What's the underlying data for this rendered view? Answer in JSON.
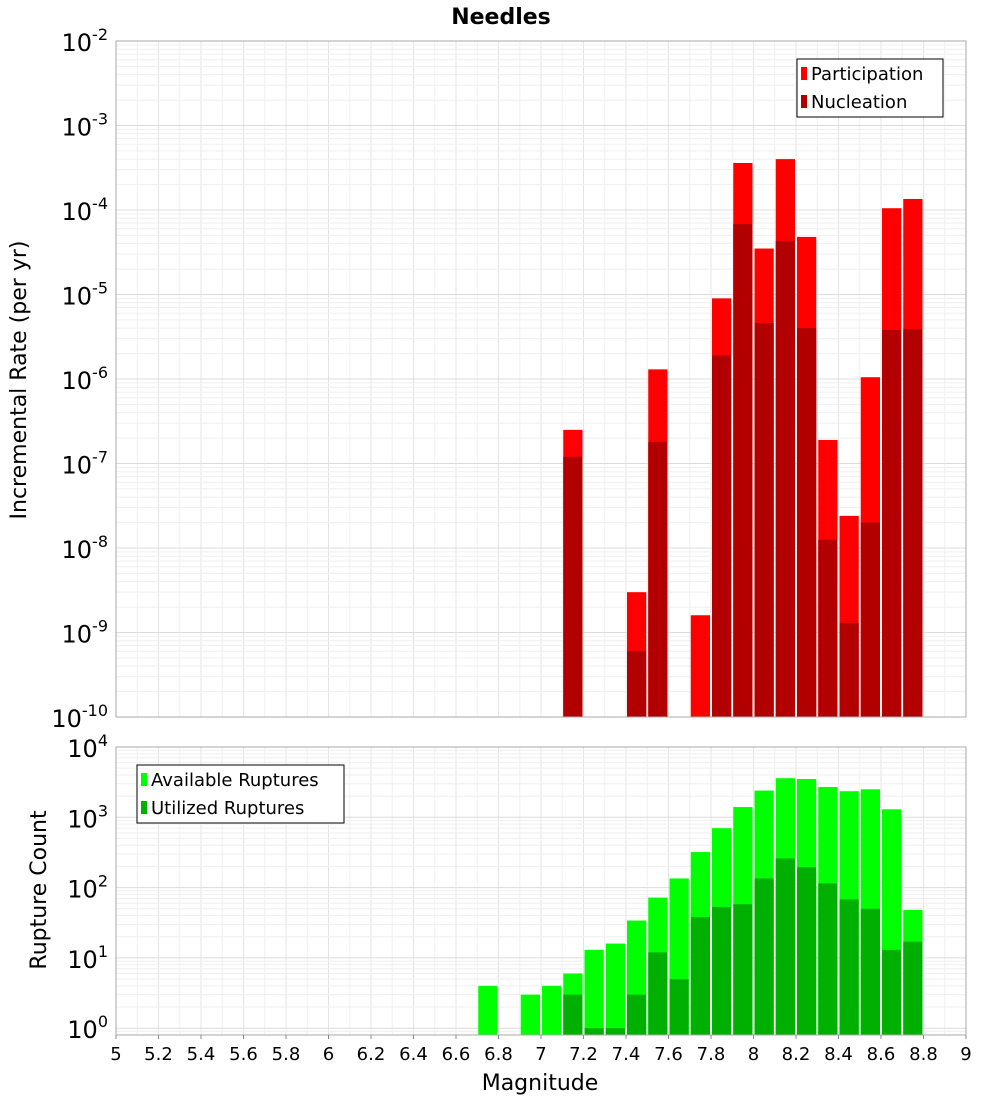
{
  "chart_data": [
    {
      "type": "bar",
      "title": "Needles",
      "xlabel": "",
      "ylabel": "Incremental Rate (per yr)",
      "yscale": "log",
      "ylim": [
        1e-10,
        0.01
      ],
      "xlim": [
        5,
        9
      ],
      "y_tick_exponents": [
        "-10",
        "-9",
        "-8",
        "-7",
        "-6",
        "-5",
        "-4",
        "-3",
        "-2"
      ],
      "grid": true,
      "legend_position": "top-right",
      "series": [
        {
          "name": "Participation",
          "color": "#ff0000",
          "x": [
            7.15,
            7.45,
            7.55,
            7.75,
            7.85,
            7.95,
            8.05,
            8.15,
            8.25,
            8.35,
            8.45,
            8.55,
            8.65,
            8.75
          ],
          "values": [
            2.5e-07,
            3e-09,
            1.3e-06,
            1.6e-09,
            9e-06,
            0.00036,
            3.5e-05,
            0.0004,
            4.8e-05,
            1.9e-07,
            2.4e-08,
            1.05e-06,
            0.000105,
            0.000135
          ]
        },
        {
          "name": "Nucleation",
          "color": "#b20000",
          "x": [
            7.15,
            7.45,
            7.55,
            7.85,
            7.95,
            8.05,
            8.15,
            8.25,
            8.35,
            8.45,
            8.55,
            8.65,
            8.75
          ],
          "values": [
            1.2e-07,
            6e-10,
            1.8e-07,
            1.9e-06,
            6.8e-05,
            4.6e-06,
            4.3e-05,
            4e-06,
            1.25e-08,
            1.3e-09,
            2e-08,
            3.8e-06,
            3.9e-06
          ]
        }
      ]
    },
    {
      "type": "bar",
      "title": "",
      "xlabel": "Magnitude",
      "ylabel": "Rupture Count",
      "yscale": "log",
      "ylim": [
        0.8,
        10000
      ],
      "xlim": [
        5,
        9
      ],
      "x_ticks": [
        "5",
        "5.2",
        "5.4",
        "5.6",
        "5.8",
        "6",
        "6.2",
        "6.4",
        "6.6",
        "6.8",
        "7",
        "7.2",
        "7.4",
        "7.6",
        "7.8",
        "8",
        "8.2",
        "8.4",
        "8.6",
        "8.8",
        "9"
      ],
      "y_tick_exponents": [
        "0",
        "1",
        "2",
        "3",
        "4"
      ],
      "grid": true,
      "legend_position": "top-left",
      "series": [
        {
          "name": "Available Ruptures",
          "color": "#00ff00",
          "x": [
            6.75,
            6.95,
            7.05,
            7.15,
            7.25,
            7.35,
            7.45,
            7.55,
            7.65,
            7.75,
            7.85,
            7.95,
            8.05,
            8.15,
            8.25,
            8.35,
            8.45,
            8.55,
            8.65,
            8.75
          ],
          "values": [
            4,
            3,
            4,
            6,
            13,
            16,
            34,
            72,
            135,
            320,
            700,
            1400,
            2400,
            3600,
            3500,
            2700,
            2350,
            2500,
            1300,
            48
          ]
        },
        {
          "name": "Utilized Ruptures",
          "color": "#00b000",
          "x": [
            7.15,
            7.25,
            7.35,
            7.45,
            7.55,
            7.65,
            7.75,
            7.85,
            7.95,
            8.05,
            8.15,
            8.25,
            8.35,
            8.45,
            8.55,
            8.65,
            8.75
          ],
          "values": [
            3,
            1,
            1,
            3,
            12,
            5,
            38,
            53,
            58,
            135,
            260,
            195,
            115,
            68,
            50,
            13,
            17
          ]
        }
      ]
    }
  ]
}
